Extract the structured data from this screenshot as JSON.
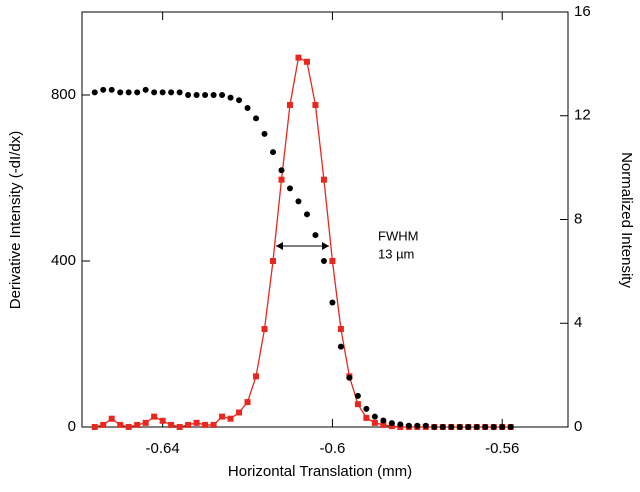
{
  "chart_data": {
    "type": "scatter",
    "x_label": "Horizontal Translation (mm)",
    "y_label": "Derivative Intensity (-dI/dx)",
    "y2_label": "Normalized Intensity",
    "annotations": [
      "FWHM",
      "13 µm"
    ],
    "x": [
      -0.656,
      -0.654,
      -0.652,
      -0.65,
      -0.648,
      -0.646,
      -0.644,
      -0.642,
      -0.64,
      -0.638,
      -0.636,
      -0.634,
      -0.632,
      -0.63,
      -0.628,
      -0.626,
      -0.624,
      -0.622,
      -0.62,
      -0.618,
      -0.616,
      -0.614,
      -0.612,
      -0.61,
      -0.608,
      -0.606,
      -0.604,
      -0.602,
      -0.6,
      -0.598,
      -0.596,
      -0.594,
      -0.592,
      -0.59,
      -0.588,
      -0.586,
      -0.584,
      -0.582,
      -0.58,
      -0.578,
      -0.576,
      -0.574,
      -0.572,
      -0.57,
      -0.568,
      -0.566,
      -0.564,
      -0.562,
      -0.56,
      -0.558
    ],
    "series": [
      {
        "color": "#e8281e",
        "axis": "y",
        "marker": "square",
        "line": true,
        "values": [
          0,
          5,
          20,
          5,
          0,
          5,
          10,
          25,
          15,
          5,
          0,
          5,
          10,
          5,
          5,
          25,
          20,
          35,
          60,
          122,
          236,
          400,
          596,
          776,
          890,
          880,
          776,
          596,
          400,
          236,
          122,
          55,
          22,
          10,
          5,
          2,
          0,
          0,
          0,
          0,
          0,
          0,
          0,
          0,
          0,
          0,
          0,
          0,
          0,
          0
        ]
      },
      {
        "color": "#000000",
        "axis": "y2",
        "marker": "circle",
        "line": false,
        "values": [
          12.9,
          13.0,
          13.0,
          12.9,
          12.9,
          12.9,
          13.0,
          12.9,
          12.9,
          12.9,
          12.9,
          12.8,
          12.8,
          12.8,
          12.8,
          12.8,
          12.7,
          12.6,
          12.3,
          11.9,
          11.3,
          10.6,
          9.9,
          9.2,
          8.7,
          8.2,
          7.4,
          6.4,
          4.8,
          3.1,
          1.9,
          1.2,
          0.7,
          0.4,
          0.25,
          0.15,
          0.1,
          0.05,
          0.05,
          0.05,
          0,
          0,
          0,
          0,
          0,
          0,
          0,
          0,
          0,
          0
        ]
      }
    ],
    "xlim": [
      -0.659,
      -0.5445
    ],
    "xticks": [
      -0.64,
      -0.6,
      -0.56
    ],
    "ylim": [
      0,
      1000
    ],
    "yticks": [
      0,
      400,
      800
    ],
    "y2lim": [
      0,
      16
    ],
    "y2ticks": [
      0,
      4,
      8,
      12,
      16
    ]
  }
}
